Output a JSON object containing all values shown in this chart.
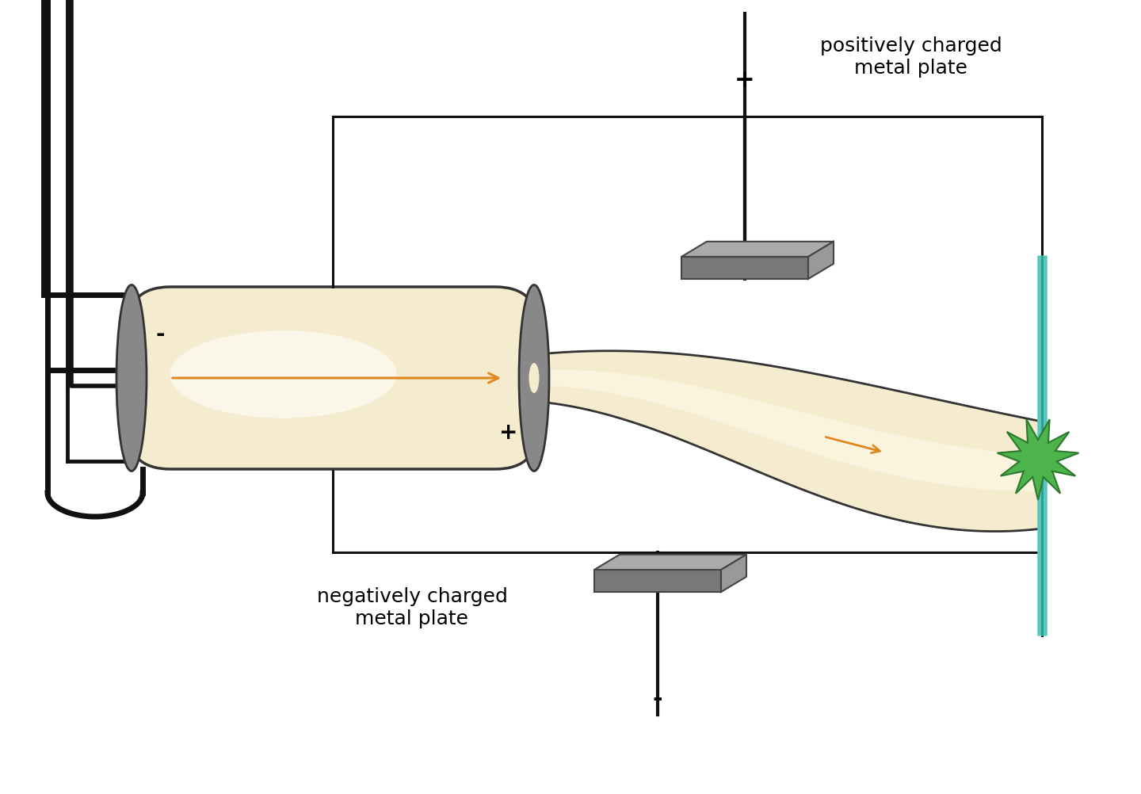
{
  "bg_color": "#ffffff",
  "tube_fill": "#f5ecd0",
  "tube_stroke": "#333333",
  "electrode_fill": "#888888",
  "beam_color": "#e08820",
  "screen_color": "#5bc8c0",
  "spark_color": "#4db34d",
  "wire_color": "#111111",
  "pos_text_label": "positively charged\nmetal plate",
  "neg_text_label": "negatively charged\nmetal plate",
  "plus_label": "+",
  "minus_label": "-",
  "font_size_label": 18,
  "font_size_sign": 20
}
